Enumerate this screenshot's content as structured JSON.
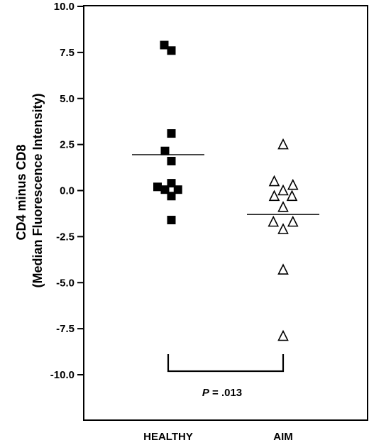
{
  "chart_data": {
    "type": "scatter",
    "subtype": "dot-plot",
    "title": "",
    "ylabel_line1": "CD4 minus CD8",
    "ylabel_line2": "(Median Fluorescence Intensity)",
    "xlabel": "",
    "ylim": [
      -12,
      10
    ],
    "yticks": [
      10.0,
      7.5,
      5.0,
      2.5,
      0.0,
      -2.5,
      -5.0,
      -7.5,
      -10.0
    ],
    "ytick_labels": [
      "10.0",
      "7.5",
      "5.0",
      "2.5",
      "0.0",
      "-2.5",
      "-5.0",
      "-7.5",
      "-10.0"
    ],
    "categories": [
      "HEALTHY",
      "AIM"
    ],
    "grid": false,
    "series": [
      {
        "category": "HEALTHY",
        "marker": "filled-square",
        "points": [
          {
            "offset": -0.22,
            "y": 7.9
          },
          {
            "offset": 0.18,
            "y": 7.6
          },
          {
            "offset": 0.18,
            "y": 3.1
          },
          {
            "offset": -0.18,
            "y": 2.15
          },
          {
            "offset": 0.18,
            "y": 1.6
          },
          {
            "offset": 0.18,
            "y": 0.4
          },
          {
            "offset": -0.6,
            "y": 0.2
          },
          {
            "offset": -0.18,
            "y": 0.05
          },
          {
            "offset": 0.55,
            "y": 0.05
          },
          {
            "offset": 0.18,
            "y": -0.3
          },
          {
            "offset": 0.18,
            "y": -1.6
          }
        ],
        "median": 1.95
      },
      {
        "category": "AIM",
        "marker": "open-triangle",
        "points": [
          {
            "offset": 0.0,
            "y": 2.5
          },
          {
            "offset": -0.5,
            "y": 0.5
          },
          {
            "offset": 0.55,
            "y": 0.3
          },
          {
            "offset": 0.0,
            "y": 0.0
          },
          {
            "offset": -0.5,
            "y": -0.3
          },
          {
            "offset": 0.5,
            "y": -0.3
          },
          {
            "offset": 0.0,
            "y": -0.9
          },
          {
            "offset": -0.55,
            "y": -1.7
          },
          {
            "offset": 0.55,
            "y": -1.7
          },
          {
            "offset": 0.0,
            "y": -2.1
          },
          {
            "offset": 0.0,
            "y": -4.3
          },
          {
            "offset": 0.0,
            "y": -7.9
          }
        ],
        "median": -1.3
      }
    ],
    "comparison": {
      "groups": [
        "HEALTHY",
        "AIM"
      ],
      "label_italic": "P",
      "label_rest": " = .013"
    }
  }
}
